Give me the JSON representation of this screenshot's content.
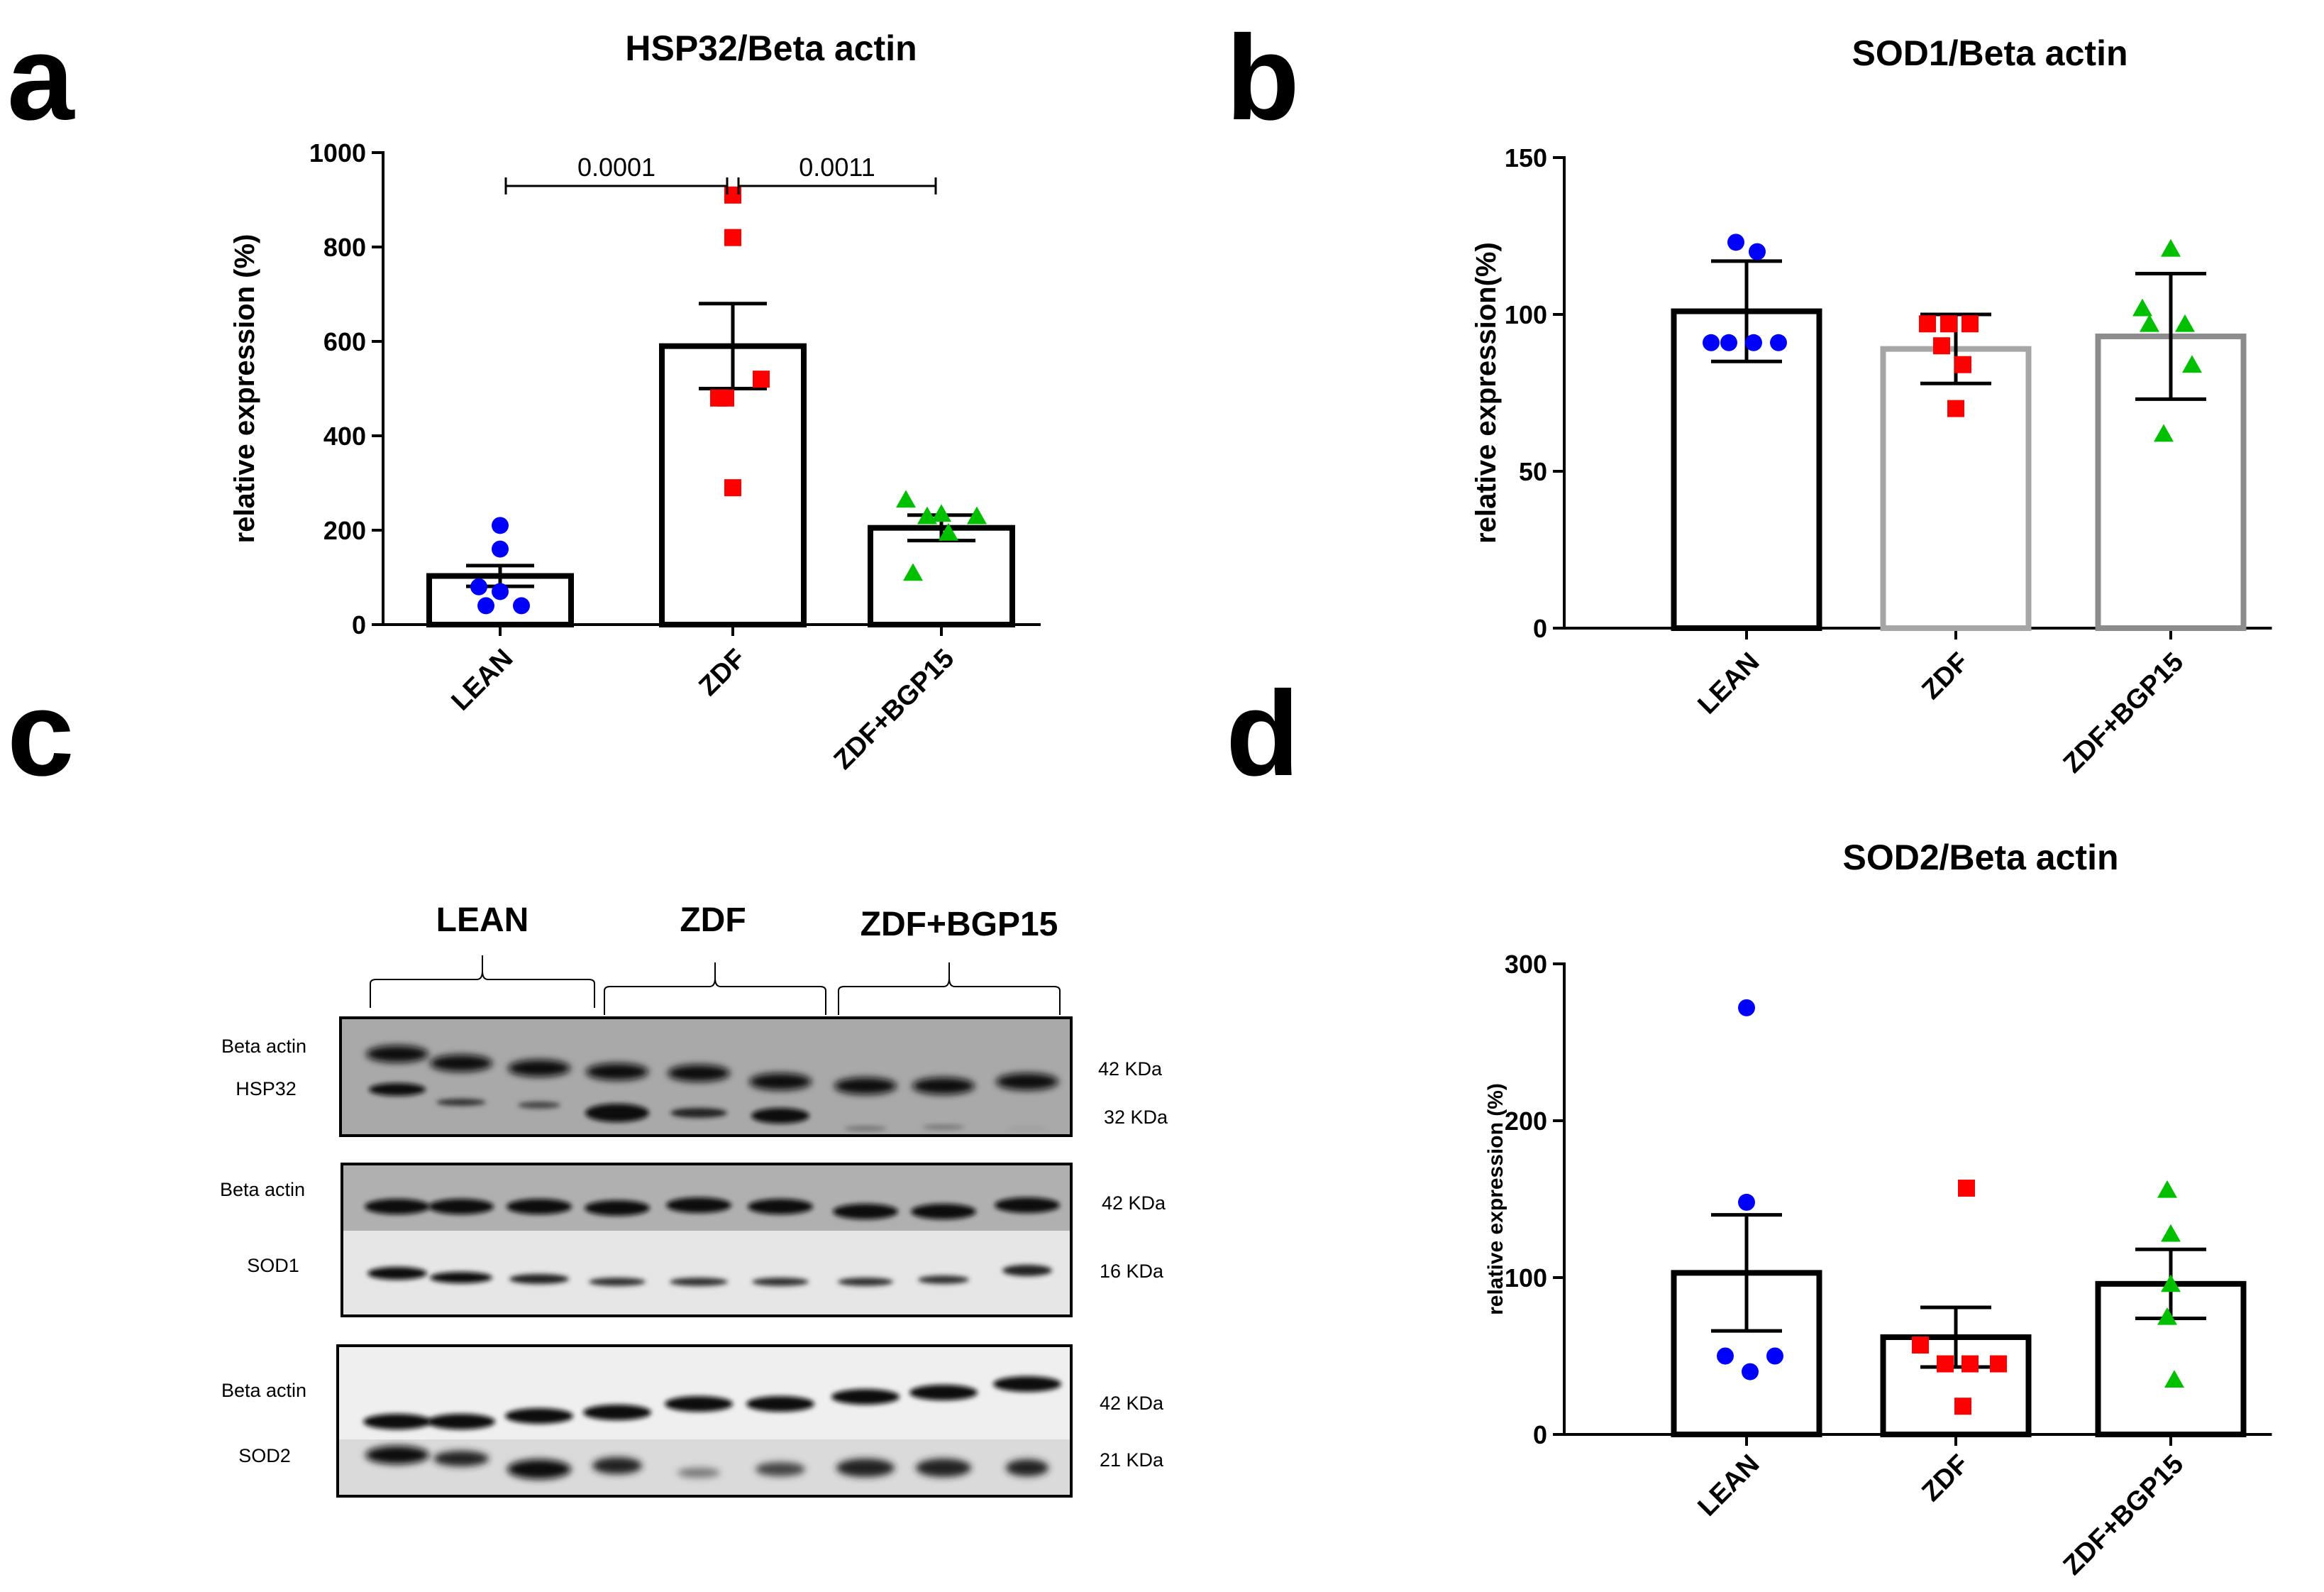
{
  "panel_labels": [
    "a",
    "b",
    "c",
    "d"
  ],
  "chart_data": [
    {
      "panel": "a",
      "type": "bar",
      "title": "HSP32/Beta actin",
      "xlabel": "",
      "ylabel": "relative expression (%)",
      "ylim": [
        0,
        1000
      ],
      "yticks": [
        0,
        200,
        400,
        600,
        800,
        1000
      ],
      "categories": [
        "LEAN",
        "ZDF",
        "ZDF+BGP15"
      ],
      "values": [
        103,
        590,
        205
      ],
      "sem": [
        22,
        90,
        27
      ],
      "colors": [
        "#0000ff",
        "#ff0000",
        "#00c000"
      ],
      "bar_edge": [
        "#000000",
        "#000000",
        "#000000"
      ],
      "markers": [
        "circle",
        "square",
        "triangle"
      ],
      "points": [
        [
          210,
          160,
          80,
          70,
          40,
          40
        ],
        [
          910,
          820,
          520,
          480,
          480,
          290
        ],
        [
          265,
          235,
          230,
          230,
          195,
          110
        ]
      ],
      "comparisons": [
        {
          "from": "LEAN",
          "to": "ZDF",
          "label": "0.0001",
          "y": 930
        },
        {
          "from": "ZDF",
          "to": "ZDF+BGP15",
          "label": "0.0011",
          "y": 930
        }
      ]
    },
    {
      "panel": "b",
      "type": "bar",
      "title": "SOD1/Beta actin",
      "xlabel": "",
      "ylabel": "relative expression(%)",
      "ylim": [
        0,
        150
      ],
      "yticks": [
        0,
        50,
        100,
        150
      ],
      "categories": [
        "LEAN",
        "ZDF",
        "ZDF+BGP15"
      ],
      "values": [
        101,
        89,
        93
      ],
      "sd": [
        16,
        11,
        20
      ],
      "colors": [
        "#0000ff",
        "#ff0000",
        "#00c000"
      ],
      "bar_edge": [
        "#000000",
        "#a6a6a6",
        "#8c8c8c"
      ],
      "markers": [
        "circle",
        "square",
        "triangle"
      ],
      "points": [
        [
          123,
          120,
          91,
          91,
          91,
          91
        ],
        [
          97,
          97,
          97,
          90,
          84,
          70
        ],
        [
          121,
          102,
          97,
          97,
          84,
          62
        ]
      ],
      "comparisons": []
    },
    {
      "panel": "d",
      "type": "bar",
      "title": "SOD2/Beta actin",
      "xlabel": "",
      "ylabel": "relative expression (%)",
      "ylim": [
        0,
        300
      ],
      "yticks": [
        0,
        100,
        200,
        300
      ],
      "categories": [
        "LEAN",
        "ZDF",
        "ZDF+BGP15"
      ],
      "values": [
        103,
        62,
        96
      ],
      "sem": [
        37,
        19,
        22
      ],
      "colors": [
        "#0000ff",
        "#ff0000",
        "#00c000"
      ],
      "bar_edge": [
        "#000000",
        "#000000",
        "#000000"
      ],
      "markers": [
        "circle",
        "square",
        "triangle"
      ],
      "points": [
        [
          272,
          148,
          50,
          50,
          40
        ],
        [
          157,
          57,
          45,
          45,
          45,
          18
        ],
        [
          156,
          128,
          96,
          75,
          35
        ]
      ],
      "comparisons": []
    }
  ],
  "western_blot": {
    "groups": [
      "LEAN",
      "ZDF",
      "ZDF+BGP15"
    ],
    "blots": [
      {
        "labels": [
          "Beta actin",
          "HSP32"
        ],
        "sizes": [
          "42 KDa",
          "32 KDa"
        ]
      },
      {
        "labels": [
          "Beta actin",
          "SOD1"
        ],
        "sizes": [
          "42 KDa",
          "16 KDa"
        ]
      },
      {
        "labels": [
          "Beta actin",
          "SOD2"
        ],
        "sizes": [
          "42 KDa",
          "21 KDa"
        ]
      }
    ]
  }
}
